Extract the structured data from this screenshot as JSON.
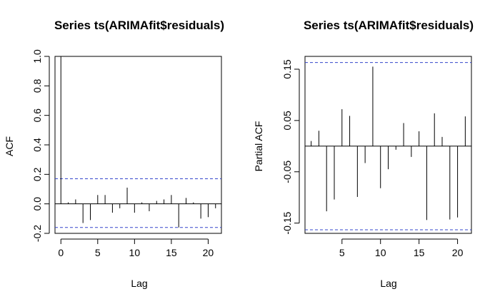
{
  "chart_data": [
    {
      "type": "bar",
      "title": "Series  ts(ARIMAfit$residuals)",
      "xlabel": "Lag",
      "ylabel": "ACF",
      "xlim": [
        -0.8,
        21.8
      ],
      "ylim": [
        -0.2,
        1.0
      ],
      "xticks": [
        0,
        5,
        10,
        15,
        20
      ],
      "yticks": [
        -0.2,
        0.0,
        0.2,
        0.4,
        0.6,
        0.8,
        1.0
      ],
      "ytick_labels": [
        "-0.2",
        "0.0",
        "0.2",
        "0.4",
        "0.6",
        "0.8",
        "1.0"
      ],
      "confidence_bounds": [
        0.17,
        -0.16
      ],
      "x": [
        0,
        1,
        2,
        3,
        4,
        5,
        6,
        7,
        8,
        9,
        10,
        11,
        12,
        13,
        14,
        15,
        16,
        17,
        18,
        19,
        20,
        21
      ],
      "values": [
        1.0,
        0.01,
        0.03,
        -0.13,
        -0.11,
        0.06,
        0.06,
        -0.06,
        -0.03,
        0.11,
        -0.06,
        0.01,
        -0.05,
        0.02,
        0.03,
        0.06,
        -0.16,
        0.04,
        0.01,
        -0.1,
        -0.09,
        -0.03
      ]
    },
    {
      "type": "bar",
      "title": "Series  ts(ARIMAfit$residuals)",
      "xlabel": "Lag",
      "ylabel": "Partial ACF",
      "xlim": [
        0.2,
        21.8
      ],
      "ylim": [
        -0.17,
        0.175
      ],
      "xticks": [
        5,
        10,
        15,
        20
      ],
      "yticks": [
        -0.15,
        -0.05,
        0.05,
        0.15
      ],
      "ytick_labels": [
        "-0.15",
        "-0.05",
        "0.05",
        "0.15"
      ],
      "confidence_bounds": [
        0.163,
        -0.163
      ],
      "x": [
        1,
        2,
        3,
        4,
        5,
        6,
        7,
        8,
        9,
        10,
        11,
        12,
        13,
        14,
        15,
        16,
        17,
        18,
        19,
        20,
        21
      ],
      "values": [
        0.01,
        0.03,
        -0.127,
        -0.104,
        0.072,
        0.059,
        -0.099,
        -0.033,
        0.155,
        -0.082,
        -0.045,
        -0.007,
        0.045,
        -0.021,
        0.029,
        -0.144,
        0.064,
        0.018,
        -0.143,
        -0.139,
        0.058
      ]
    }
  ]
}
